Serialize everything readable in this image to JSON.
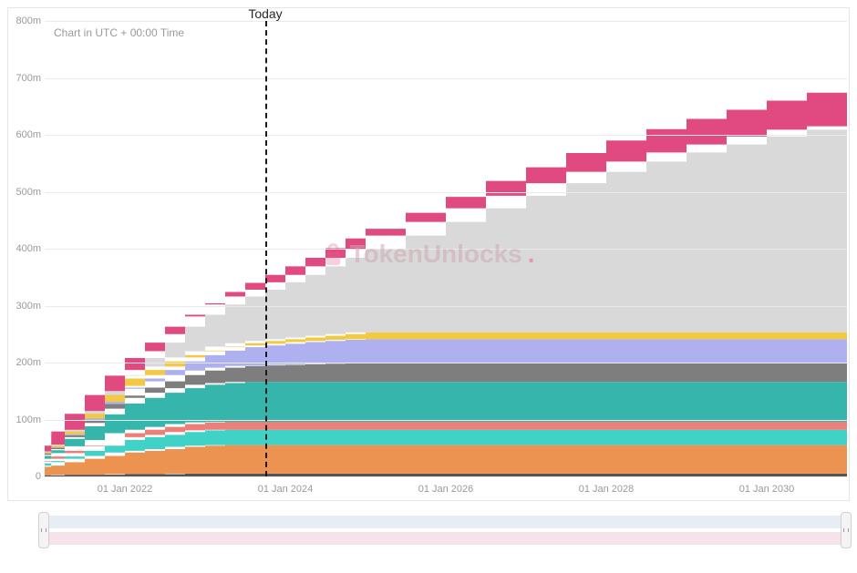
{
  "note": "Chart in UTC + 00:00 Time",
  "today_label": "Today",
  "watermark_text": "TokenUnlocks",
  "watermark_color": "#cfaab2",
  "watermark_accent": "#e8638d",
  "chart": {
    "type": "stacked-area",
    "background_color": "#ffffff",
    "grid_color": "#eaeaea",
    "border_color": "#e5e5e5",
    "ylim": [
      0,
      800
    ],
    "ytick_step": 100,
    "y_suffix": "m",
    "x_domain_years": [
      2021.0,
      2031.0
    ],
    "x_ticks": [
      {
        "year": 2022.0,
        "label": "01 Jan 2022"
      },
      {
        "year": 2024.0,
        "label": "01 Jan 2024"
      },
      {
        "year": 2026.0,
        "label": "01 Jan 2026"
      },
      {
        "year": 2028.0,
        "label": "01 Jan 2028"
      },
      {
        "year": 2030.0,
        "label": "01 Jan 2030"
      }
    ],
    "today_year": 2023.75,
    "x_steps_years": [
      2021.0,
      2021.083,
      2021.25,
      2021.5,
      2021.75,
      2022.0,
      2022.25,
      2022.5,
      2022.75,
      2023.0,
      2023.25,
      2023.5,
      2023.75,
      2024.0,
      2024.25,
      2024.5,
      2024.75,
      2025.0,
      2025.5,
      2026.0,
      2026.5,
      2027.0,
      2027.5,
      2028.0,
      2028.5,
      2029.0,
      2029.5,
      2030.0,
      2030.5,
      2031.0
    ],
    "series": [
      {
        "name": "dark-gray",
        "color": "#545454",
        "values": [
          2,
          2,
          3,
          3,
          3,
          4,
          4,
          4,
          5,
          5,
          5,
          5,
          5,
          5,
          5,
          5,
          5,
          5,
          5,
          5,
          5,
          5,
          5,
          5,
          5,
          5,
          5,
          5,
          5,
          5
        ]
      },
      {
        "name": "orange",
        "color": "#ec9351",
        "values": [
          15,
          17,
          22,
          28,
          33,
          38,
          41,
          44,
          47,
          49,
          50,
          50,
          50,
          50,
          50,
          50,
          50,
          50,
          50,
          50,
          50,
          50,
          50,
          50,
          50,
          50,
          50,
          50,
          50,
          50
        ]
      },
      {
        "name": "cyan",
        "color": "#40d2c7",
        "values": [
          6,
          8,
          10,
          14,
          18,
          22,
          24,
          25,
          26,
          27,
          27,
          27,
          27,
          27,
          27,
          27,
          27,
          27,
          27,
          27,
          27,
          27,
          27,
          27,
          27,
          27,
          27,
          27,
          27,
          27
        ]
      },
      {
        "name": "salmon",
        "color": "#ec7f78",
        "values": [
          3,
          4,
          6,
          8,
          10,
          12,
          13,
          14,
          14,
          14,
          14,
          14,
          14,
          14,
          14,
          14,
          14,
          14,
          14,
          14,
          14,
          14,
          14,
          14,
          14,
          14,
          14,
          14,
          14,
          14
        ]
      },
      {
        "name": "teal",
        "color": "#35b5ab",
        "values": [
          10,
          15,
          25,
          35,
          45,
          52,
          56,
          60,
          63,
          66,
          68,
          70,
          70,
          70,
          70,
          70,
          70,
          70,
          70,
          70,
          70,
          70,
          70,
          70,
          70,
          70,
          70,
          70,
          70,
          70
        ]
      },
      {
        "name": "mid-gray",
        "color": "#7e7e7e",
        "values": [
          2,
          2,
          3,
          6,
          10,
          14,
          18,
          20,
          23,
          25,
          27,
          28,
          29,
          30,
          31,
          32,
          33,
          33,
          33,
          33,
          33,
          33,
          33,
          33,
          33,
          33,
          33,
          33,
          33,
          33
        ]
      },
      {
        "name": "periwinkle",
        "color": "#aeb0f0",
        "values": [
          2,
          2,
          3,
          5,
          8,
          12,
          16,
          20,
          24,
          27,
          30,
          33,
          35,
          37,
          39,
          40,
          41,
          42,
          42,
          42,
          42,
          42,
          42,
          42,
          42,
          42,
          42,
          42,
          42,
          42
        ]
      },
      {
        "name": "yellow",
        "color": "#f2c940",
        "values": [
          1,
          1,
          2,
          3,
          4,
          5,
          6,
          6,
          7,
          7,
          7,
          7,
          8,
          8,
          8,
          9,
          10,
          12,
          12,
          12,
          12,
          12,
          12,
          12,
          12,
          12,
          12,
          12,
          12,
          12
        ]
      },
      {
        "name": "light-gray",
        "color": "#d9d9d9",
        "values": [
          2,
          3,
          5,
          8,
          12,
          18,
          30,
          42,
          54,
          64,
          74,
          82,
          90,
          100,
          110,
          122,
          134,
          146,
          170,
          194,
          218,
          240,
          262,
          282,
          300,
          316,
          330,
          344,
          356,
          362
        ]
      },
      {
        "name": "magenta",
        "color": "#e04a80",
        "values": [
          1,
          2,
          3,
          5,
          7,
          10,
          12,
          15,
          18,
          20,
          22,
          24,
          26,
          28,
          30,
          32,
          34,
          36,
          40,
          44,
          48,
          50,
          53,
          55,
          57,
          59,
          61,
          63,
          65,
          66
        ]
      }
    ],
    "label_fontsize": 11,
    "label_color": "#9a9a9a"
  },
  "scrubber": {
    "track1_color": "#e8ecf4",
    "track2_color": "#f6e3e9",
    "handle_bg": "#f4f4f4",
    "handle_border": "#d0d0d0"
  }
}
